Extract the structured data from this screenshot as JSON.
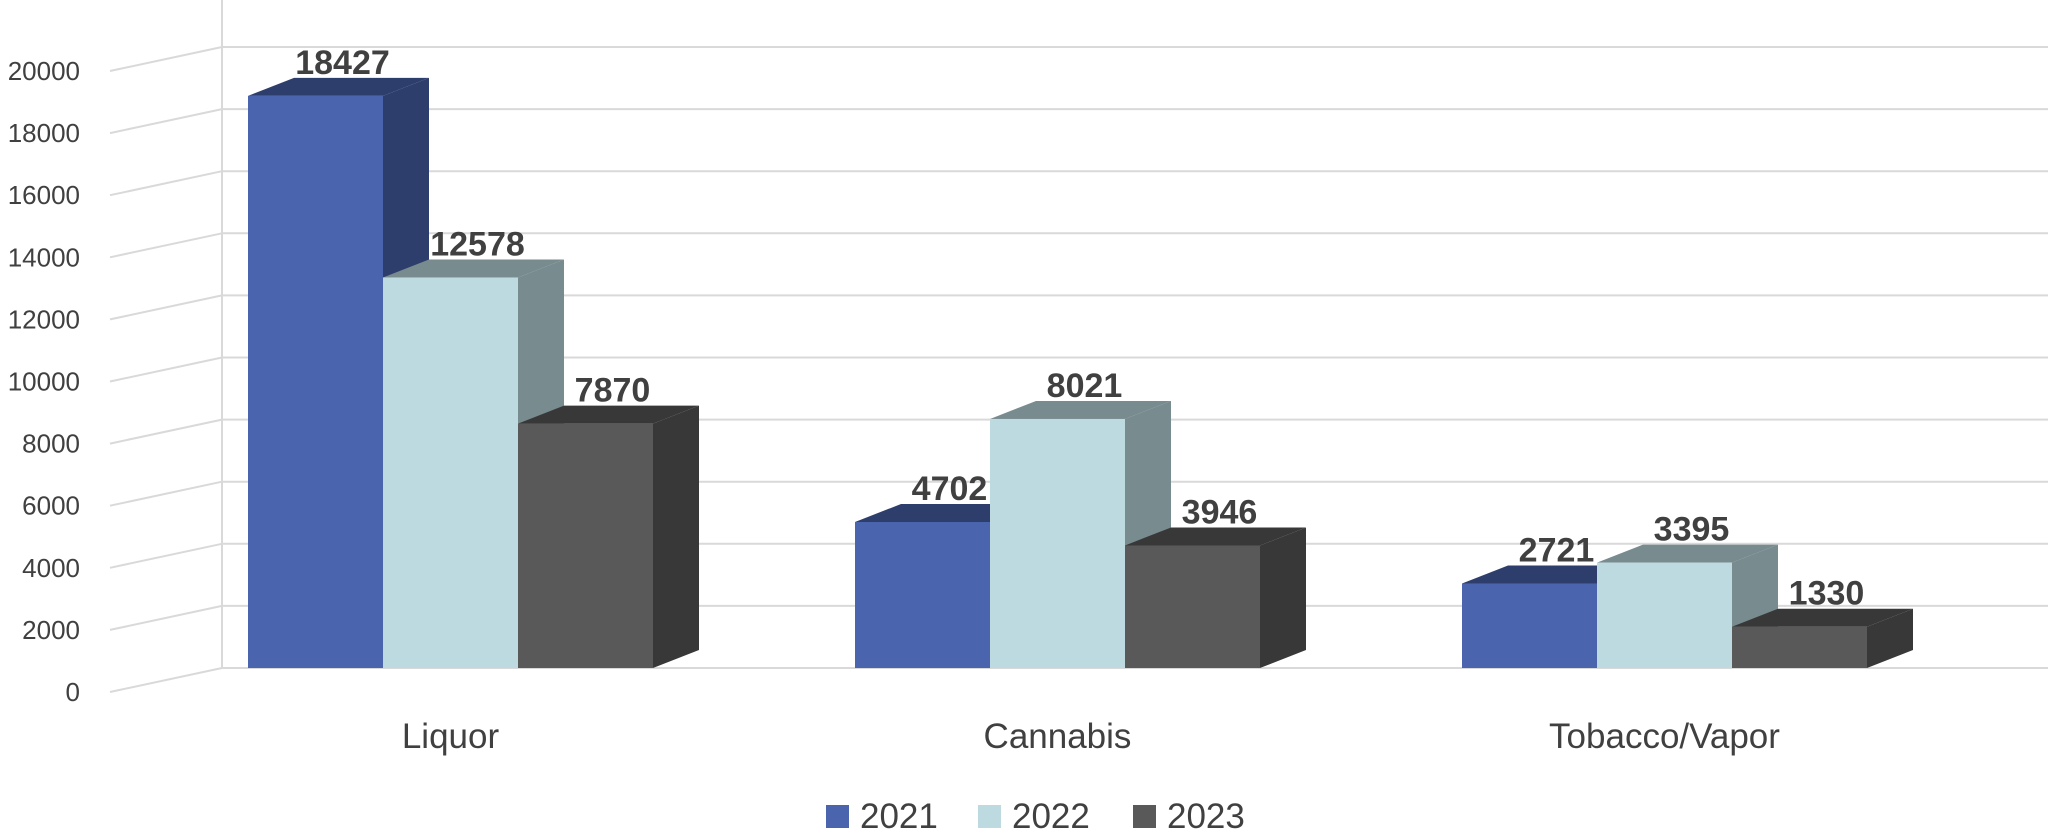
{
  "chart_data": {
    "type": "bar",
    "style": "3d-clustered-column",
    "title": "",
    "xlabel": "",
    "ylabel": "",
    "categories": [
      "Liquor",
      "Cannabis",
      "Tobacco/Vapor"
    ],
    "series": [
      {
        "name": "2021",
        "values": [
          18427,
          4702,
          2721
        ],
        "color": "#4A65AE",
        "side_color": "#2E3E6C"
      },
      {
        "name": "2022",
        "values": [
          12578,
          8021,
          3395
        ],
        "color": "#BCDADF",
        "side_color": "#788B8E"
      },
      {
        "name": "2023",
        "values": [
          7870,
          3946,
          1330
        ],
        "color": "#595959",
        "side_color": "#383838"
      }
    ],
    "ylim": [
      0,
      20000
    ],
    "yticks": [
      0,
      2000,
      4000,
      6000,
      8000,
      10000,
      12000,
      14000,
      16000,
      18000,
      20000
    ],
    "grid": true,
    "legend_position": "bottom"
  }
}
